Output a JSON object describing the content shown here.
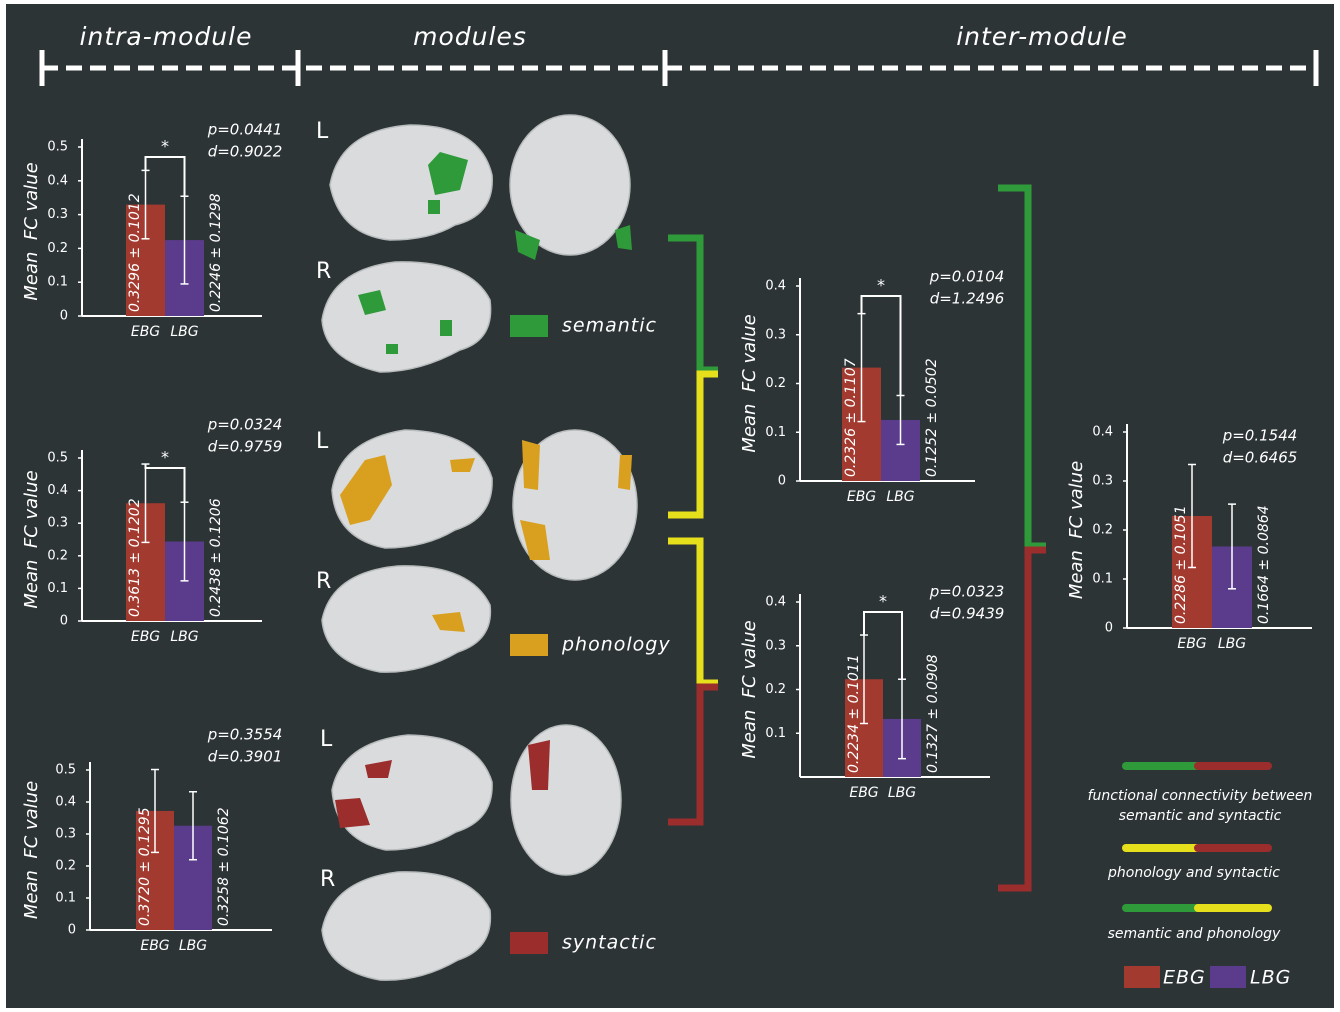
{
  "headers": [
    "intra-module",
    "modules",
    "inter-module"
  ],
  "brain_panels": [
    {
      "module": "semantic",
      "labels": [
        "L",
        "R"
      ]
    },
    {
      "module": "phonology",
      "labels": [
        "L",
        "R"
      ]
    },
    {
      "module": "syntactic",
      "labels": [
        "L",
        "R"
      ]
    }
  ],
  "legend": {
    "connections": [
      {
        "lines": [
          "functional connectivity between",
          "semantic and syntactic"
        ]
      },
      {
        "lines": [
          "phonology and syntactic"
        ]
      },
      {
        "lines": [
          "semantic and phonology"
        ]
      }
    ],
    "groups": [
      "EBG",
      "LBG"
    ]
  },
  "chart_data": [
    {
      "type": "bar",
      "y_label": "Mean  FC value",
      "annotations": [
        "p=0.0441",
        "d=0.9022"
      ],
      "significance": "*",
      "categories": [
        "EBG",
        "LBG"
      ],
      "values": [
        0.3296,
        0.2246
      ],
      "errors": [
        0.1012,
        0.1298
      ],
      "value_labels": [
        "0.3296 ± 0.1012",
        "0.2246 ± 0.1298"
      ],
      "colors": [
        "#a33a2f",
        "#5b3b8c"
      ],
      "ylim": [
        0,
        0.5
      ],
      "yticks": [
        0,
        0.1,
        0.2,
        0.3,
        0.4,
        0.5
      ]
    },
    {
      "type": "bar",
      "y_label": "Mean  FC value",
      "annotations": [
        "p=0.0324",
        "d=0.9759"
      ],
      "significance": "*",
      "categories": [
        "EBG",
        "LBG"
      ],
      "values": [
        0.3613,
        0.2438
      ],
      "errors": [
        0.1202,
        0.1206
      ],
      "value_labels": [
        "0.3613 ± 0.1202",
        "0.2438 ± 0.1206"
      ],
      "colors": [
        "#a33a2f",
        "#5b3b8c"
      ],
      "ylim": [
        0,
        0.5
      ],
      "yticks": [
        0,
        0.1,
        0.2,
        0.3,
        0.4,
        0.5
      ]
    },
    {
      "type": "bar",
      "y_label": "Mean  FC value",
      "annotations": [
        "p=0.3554",
        "d=0.3901"
      ],
      "categories": [
        "EBG",
        "LBG"
      ],
      "values": [
        0.372,
        0.3258
      ],
      "errors": [
        0.1295,
        0.1062
      ],
      "value_labels": [
        "0.3720 ± 0.1295",
        "0.3258 ± 0.1062"
      ],
      "colors": [
        "#a33a2f",
        "#5b3b8c"
      ],
      "ylim": [
        0,
        0.5
      ],
      "yticks": [
        0,
        0.1,
        0.2,
        0.3,
        0.4,
        0.5
      ]
    },
    {
      "type": "bar",
      "y_label": "Mean  FC value",
      "annotations": [
        "p=0.0104",
        "d=1.2496"
      ],
      "significance": "*",
      "categories": [
        "EBG",
        "LBG"
      ],
      "values": [
        0.2326,
        0.1252
      ],
      "errors": [
        0.1107,
        0.0502
      ],
      "value_labels": [
        "0.2326 ± 0.1107",
        "0.1252 ± 0.0502"
      ],
      "colors": [
        "#a33a2f",
        "#5b3b8c"
      ],
      "ylim": [
        0,
        0.4
      ],
      "yticks": [
        0,
        0.1,
        0.2,
        0.3,
        0.4
      ]
    },
    {
      "type": "bar",
      "y_label": "Mean  FC value",
      "annotations": [
        "p=0.0323",
        "d=0.9439"
      ],
      "significance": "*",
      "categories": [
        "EBG",
        "LBG"
      ],
      "values": [
        0.2234,
        0.1327
      ],
      "errors": [
        0.1011,
        0.0908
      ],
      "value_labels": [
        "0.2234 ± 0.1011",
        "0.1327 ± 0.0908"
      ],
      "colors": [
        "#a33a2f",
        "#5b3b8c"
      ],
      "ylim": [
        0,
        0.4
      ],
      "yticks": [
        0.1,
        0.2,
        0.3,
        0.4
      ]
    },
    {
      "type": "bar",
      "y_label": "Mean  FC value",
      "annotations": [
        "p=0.1544",
        "d=0.6465"
      ],
      "categories": [
        "EBG",
        "LBG"
      ],
      "values": [
        0.2286,
        0.1664
      ],
      "errors": [
        0.1051,
        0.0864
      ],
      "value_labels": [
        "0.2286 ± 0.1051",
        "0.1664 ± 0.0864"
      ],
      "colors": [
        "#a33a2f",
        "#5b3b8c"
      ],
      "ylim": [
        0,
        0.4
      ],
      "yticks": [
        0,
        0.1,
        0.2,
        0.3,
        0.4
      ]
    }
  ]
}
